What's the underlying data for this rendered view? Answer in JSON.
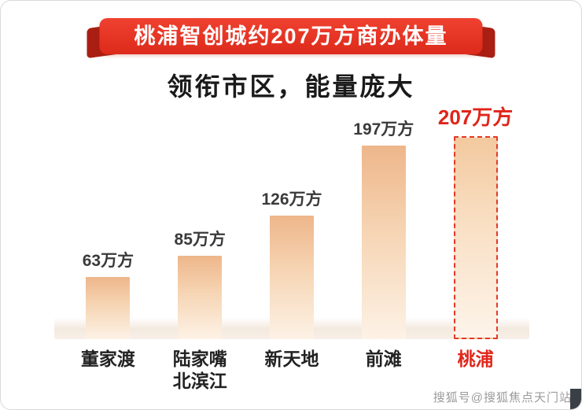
{
  "banner": {
    "title": "桃浦智创城约207万方商办体量",
    "color": "#dd2a1b",
    "fold_color": "#aa1f13"
  },
  "subtitle": "领衔市区，能量庞大",
  "watermark": "搜狐号@搜狐焦点天门站",
  "chart_data": {
    "type": "bar",
    "title": "领衔市区，能量庞大",
    "categories": [
      "董家渡",
      "陆家嘴\n北滨江",
      "新天地",
      "前滩",
      "桃浦"
    ],
    "values": [
      63,
      85,
      126,
      197,
      207
    ],
    "value_labels": [
      "63万方",
      "85万方",
      "126万方",
      "197万方",
      "207万方"
    ],
    "unit": "万方",
    "highlight_index": 4,
    "highlight_color": "#e0251a",
    "bar_gradient_top": "#eeb68a",
    "bar_gradient_bottom": "#fdf2e6",
    "xlabel": "",
    "ylabel": "",
    "ylim": [
      0,
      220
    ],
    "grid": false,
    "legend": false
  }
}
